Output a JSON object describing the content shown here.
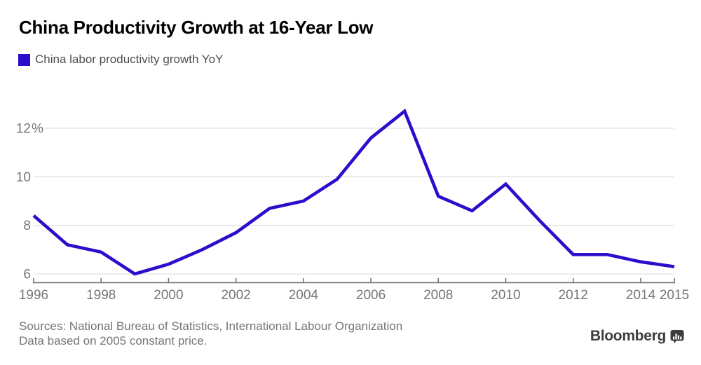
{
  "title": "China Productivity Growth at 16-Year Low",
  "legend": {
    "label": "China labor productivity growth YoY",
    "swatch_color": "#2b0dcb"
  },
  "footer": {
    "source_line1": "Sources: National Bureau of Statistics, International Labour Organization",
    "source_line2": "Data based on 2005 constant price.",
    "brand": "Bloomberg",
    "brand_icon": "bloomberg-terminal-icon"
  },
  "colors": {
    "line": "#2b0dcb",
    "gridline": "#e2e2e2",
    "axis": "#6f6f6f",
    "axis_text": "#767676",
    "title_text": "#000000",
    "legend_text": "#4d4d4d",
    "source_text": "#767676",
    "brand_text": "#3d3d3d"
  },
  "chart_data": {
    "type": "line",
    "title": "China Productivity Growth at 16-Year Low",
    "series": [
      {
        "name": "China labor productivity growth YoY",
        "color": "#2b0dcb",
        "x": [
          1996,
          1997,
          1998,
          1999,
          2000,
          2001,
          2002,
          2003,
          2004,
          2005,
          2006,
          2007,
          2008,
          2009,
          2010,
          2011,
          2012,
          2013,
          2014,
          2015
        ],
        "values": [
          8.4,
          7.2,
          6.9,
          6.0,
          6.4,
          7.0,
          7.7,
          8.7,
          9.0,
          9.9,
          11.6,
          12.7,
          9.2,
          8.6,
          9.7,
          8.2,
          6.8,
          6.8,
          6.5,
          6.3
        ]
      }
    ],
    "xlim": [
      1996,
      2015
    ],
    "x_ticks": [
      1996,
      1998,
      2000,
      2002,
      2004,
      2006,
      2008,
      2010,
      2012,
      2014,
      2015
    ],
    "x_tick_labels": [
      "1996",
      "1998",
      "2000",
      "2002",
      "2004",
      "2006",
      "2008",
      "2010",
      "2012",
      "2014",
      "2015"
    ],
    "y_gridlines": [
      6,
      8,
      10,
      12
    ],
    "y_tick_labels": [
      "6",
      "8",
      "10",
      "12%"
    ],
    "ylim": [
      5.7,
      13.1
    ],
    "unit": "percent",
    "grid": "horizontal",
    "legend_position": "top-left"
  }
}
